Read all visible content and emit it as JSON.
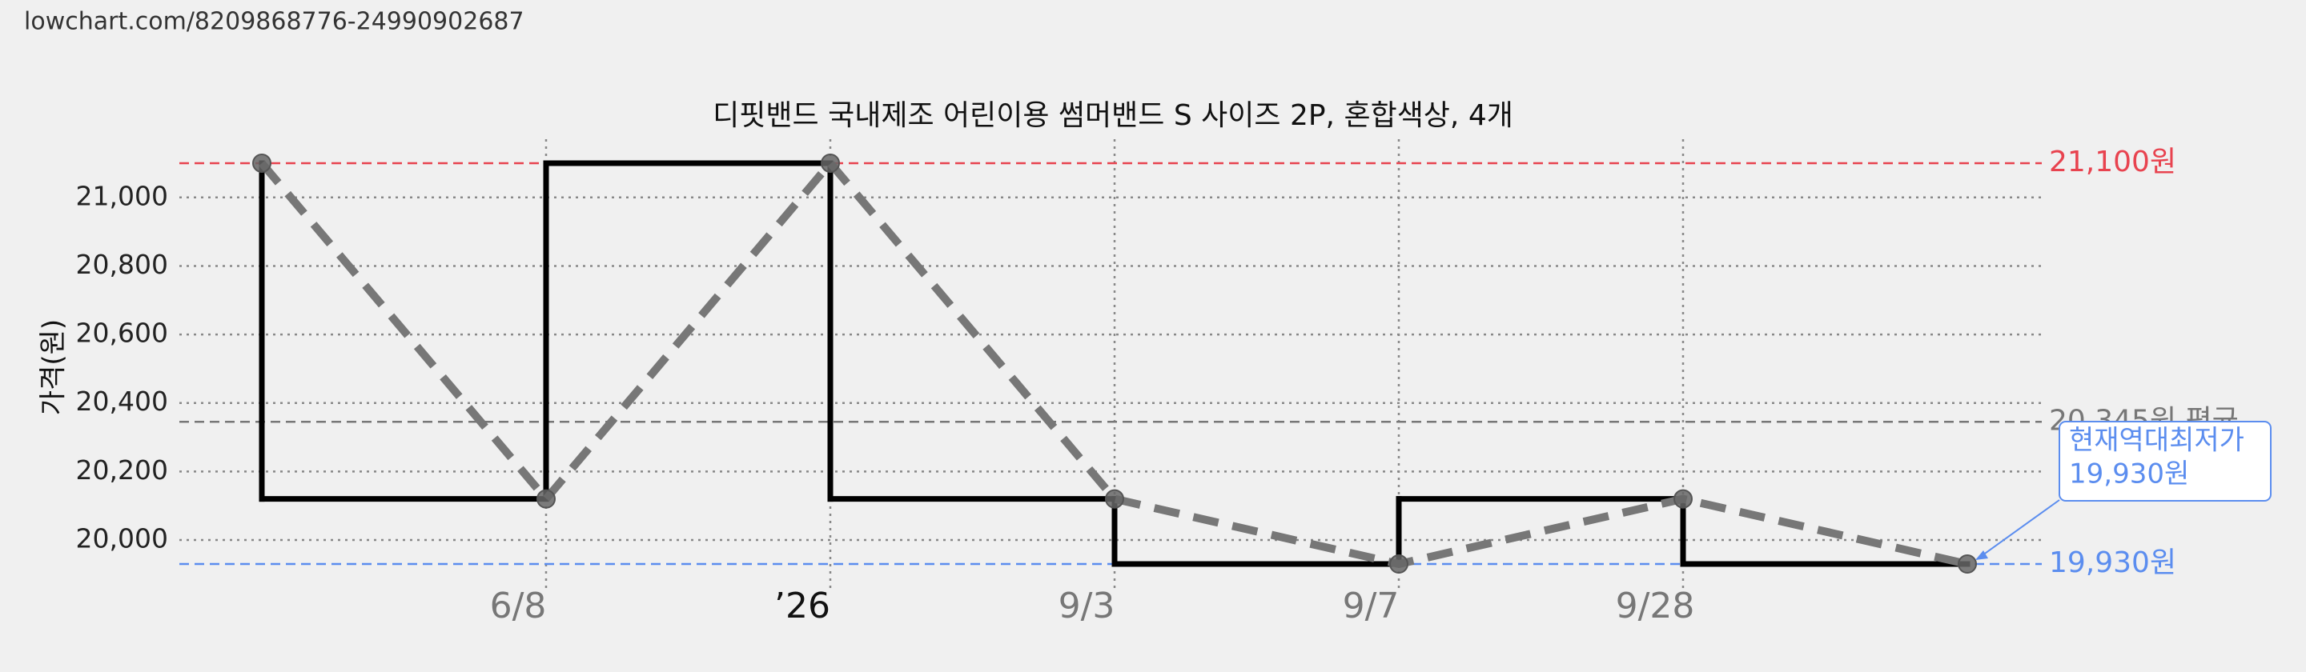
{
  "source_url": "lowchart.com/8209868776-24990902687",
  "chart_data": {
    "type": "line",
    "title": "디핏밴드 국내제조 어린이용 썸머밴드 S 사이즈 2P, 혼합색상, 4개",
    "y_label": "가격(원)",
    "categories": [
      null,
      "6/8",
      "’26",
      "9/3",
      "9/7",
      "9/28",
      null
    ],
    "values": [
      21100,
      20120,
      21100,
      20120,
      19930,
      20120,
      19930
    ],
    "step_color": "#000000",
    "dash_color": "#777777",
    "ylim": [
      19860,
      21170
    ],
    "yticks": [
      {
        "value": 20000,
        "label": "20,000"
      },
      {
        "value": 20200,
        "label": "20,200"
      },
      {
        "value": 20400,
        "label": "20,400"
      },
      {
        "value": 20600,
        "label": "20,600"
      },
      {
        "value": 20800,
        "label": "20,800"
      },
      {
        "value": 21000,
        "label": "21,000"
      }
    ],
    "grid": true,
    "reference_lines": [
      {
        "value": 21100,
        "label": "21,100원",
        "color": "#e8434f"
      },
      {
        "value": 20345,
        "label": "20,345원 평균",
        "color": "#777777"
      },
      {
        "value": 19930,
        "label": "19,930원",
        "color": "#5b8def"
      }
    ],
    "annotation": {
      "lines": [
        "현재역대최저가",
        "19,930원"
      ],
      "color": "#5b8def"
    }
  }
}
